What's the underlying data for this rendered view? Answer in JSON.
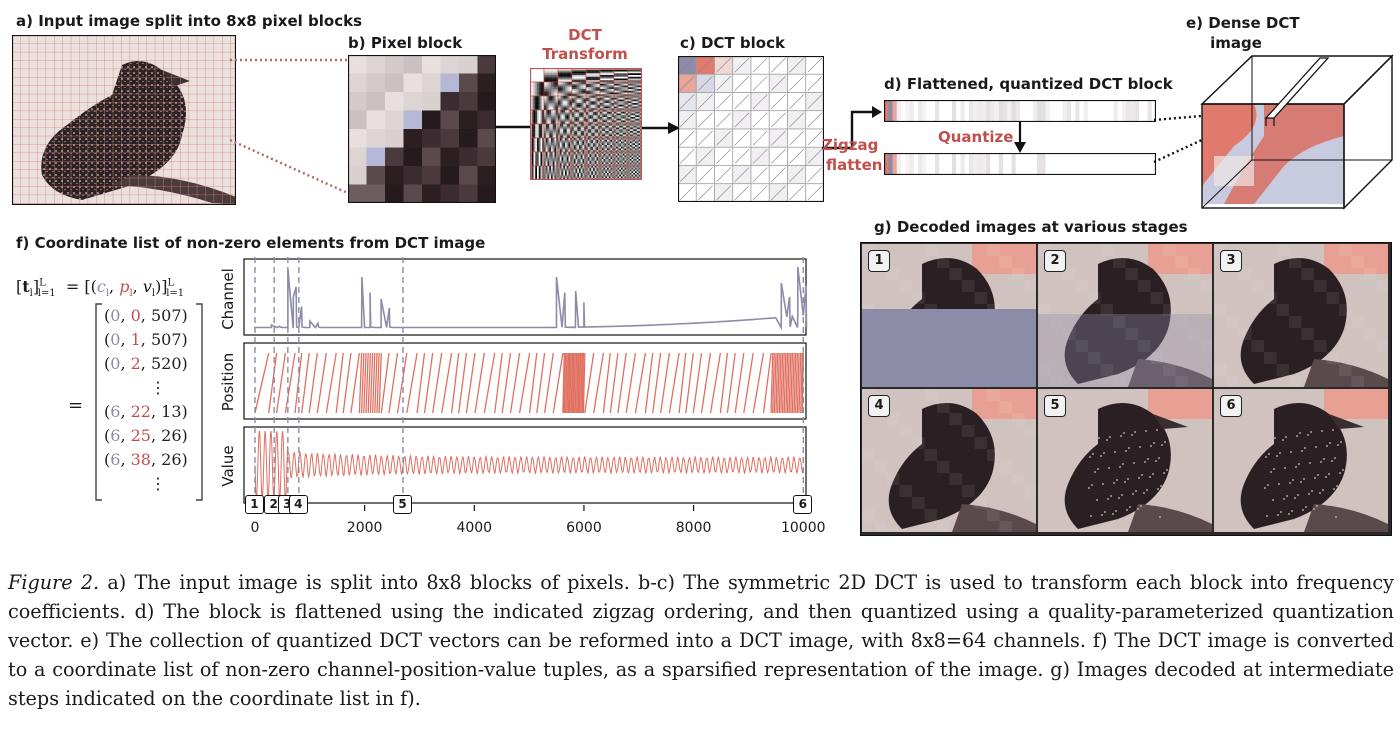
{
  "panels": {
    "a_title": "a) Input image split into 8x8 pixel blocks",
    "b_title": "b) Pixel block",
    "dct_transform_line1": "DCT",
    "dct_transform_line2": "Transform",
    "c_title": "c) DCT block",
    "d_title": "d) Flattened, quantized DCT block",
    "quantize": "Quantize",
    "zigzag_line1": "Zigzag",
    "zigzag_line2": "flatten",
    "e_title_line1": "e) Dense DCT",
    "e_title_line2": "image",
    "f_title": "f) Coordinate list of non-zero elements from DCT image",
    "g_title": "g) Decoded images at various stages"
  },
  "equation": {
    "lhs": "[t",
    "tuples": [
      "(0, 0, 507)",
      "(0, 1, 507)",
      "(0, 2, 520)",
      "⋮",
      "(6, 22, 13)",
      "(6, 25, 26)",
      "(6, 38, 26)",
      "⋮"
    ]
  },
  "plot": {
    "ylabels": [
      "Channel",
      "Position",
      "Value"
    ],
    "xticks": [
      "0",
      "2000",
      "4000",
      "6000",
      "8000",
      "10000"
    ],
    "xtick_values": [
      0,
      2000,
      4000,
      6000,
      8000,
      10000
    ],
    "xlim": [
      -200,
      10050
    ],
    "markers": [
      {
        "label": "1",
        "x": 0
      },
      {
        "label": "2",
        "x": 350
      },
      {
        "label": "3",
        "x": 600
      },
      {
        "label": "4",
        "x": 800
      },
      {
        "label": "5",
        "x": 2700
      },
      {
        "label": "6",
        "x": 10000
      }
    ],
    "line_color": "#8c8ca8",
    "accent_color": "#e06f60"
  },
  "decoded": {
    "labels": [
      "1",
      "2",
      "3",
      "4",
      "5",
      "6"
    ]
  },
  "caption": {
    "fig": "Figure 2.",
    "text": " a) The input image is split into 8x8 blocks of pixels. b-c) The symmetric 2D DCT is used to transform each block into frequency coefficients. d) The block is flattened using the indicated zigzag ordering, and then quantized using a quality-parameterized quantization vector. e) The collection of quantized DCT vectors can be reformed into a DCT image, with 8x8=64 channels. f) The DCT image is converted to a coordinate list of non-zero channel-position-value tuples, as a sparsified representation of the image. g) Images decoded at intermediate steps indicated on the coordinate list in f)."
  }
}
